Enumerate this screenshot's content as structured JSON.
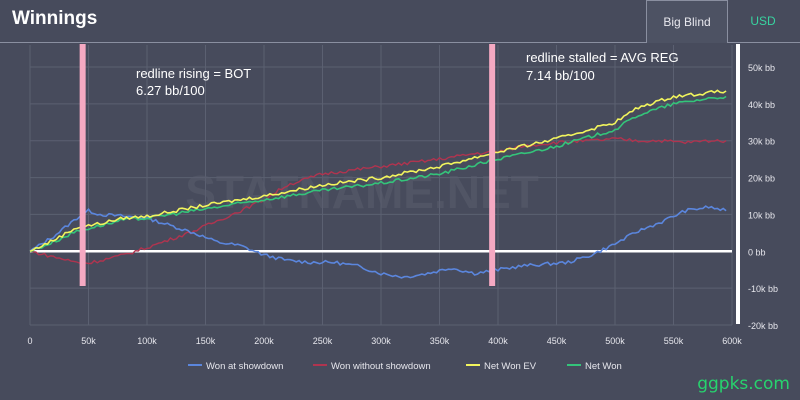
{
  "header": {
    "title": "Winnings",
    "tabs": [
      {
        "label": "Big Blind",
        "active": true
      },
      {
        "label": "USD",
        "active": false
      }
    ]
  },
  "annotations": {
    "left_line1": "redline rising = BOT",
    "left_line2": "6.27 bb/100",
    "right_line1": "redline stalled = AVG REG",
    "right_line2": "7.14 bb/100"
  },
  "watermark": "STATNAME.NET",
  "site_credit": "ggpks.com",
  "colors": {
    "background": "#474b5c",
    "showdown": "#5b86dd",
    "non_showdown": "#b0344f",
    "net_won_ev": "#f2f55d",
    "net_won": "#34c47a",
    "marker": "#f5a9c2",
    "zero_line": "#ffffff"
  },
  "chart_data": {
    "type": "line",
    "x_ticks": [
      "0",
      "50k",
      "100k",
      "150k",
      "200k",
      "250k",
      "300k",
      "350k",
      "400k",
      "450k",
      "500k",
      "550k",
      "600k"
    ],
    "y_ticks": [
      "50k bb",
      "40k bb",
      "30k bb",
      "20k bb",
      "10k bb",
      "0 bb",
      "-10k bb",
      "-20k bb"
    ],
    "xlim": [
      0,
      600000
    ],
    "ylim": [
      -20000,
      50000
    ],
    "grid": true,
    "legend_position": "bottom",
    "markers_x": [
      45000,
      395000
    ],
    "series": [
      {
        "name": "Won at showdown",
        "color": "#5b86dd",
        "x": [
          0,
          20000,
          40000,
          50000,
          60000,
          80000,
          100000,
          120000,
          140000,
          160000,
          180000,
          200000,
          220000,
          240000,
          260000,
          280000,
          300000,
          320000,
          340000,
          360000,
          380000,
          400000,
          420000,
          440000,
          460000,
          480000,
          500000,
          520000,
          540000,
          560000,
          580000,
          595000
        ],
        "y": [
          0,
          4000,
          9000,
          11000,
          10000,
          9500,
          9000,
          7000,
          5000,
          2500,
          1500,
          -1000,
          -2500,
          -3000,
          -3000,
          -4000,
          -6000,
          -7000,
          -6000,
          -4500,
          -6000,
          -5000,
          -4000,
          -3500,
          -3000,
          -1000,
          2000,
          5500,
          8000,
          11000,
          12000,
          11000
        ]
      },
      {
        "name": "Won without showdown",
        "color": "#b0344f",
        "x": [
          0,
          20000,
          40000,
          50000,
          60000,
          80000,
          100000,
          140000,
          180000,
          200000,
          220000,
          250000,
          300000,
          350000,
          380000,
          400000,
          420000,
          450000,
          480000,
          500000,
          520000,
          540000,
          560000,
          580000,
          595000
        ],
        "y": [
          0,
          -1500,
          -3000,
          -3200,
          -2500,
          -1000,
          1000,
          5500,
          11000,
          14000,
          18000,
          21000,
          23000,
          25000,
          26500,
          27000,
          28500,
          29500,
          30000,
          30500,
          30000,
          30000,
          29500,
          30000,
          30000
        ]
      },
      {
        "name": "Net Won EV",
        "color": "#f2f55d",
        "x": [
          0,
          20000,
          40000,
          60000,
          80000,
          100000,
          150000,
          200000,
          250000,
          300000,
          350000,
          400000,
          450000,
          500000,
          520000,
          550000,
          580000,
          595000
        ],
        "y": [
          0,
          3000,
          6500,
          7500,
          9000,
          9500,
          12500,
          15000,
          18000,
          20000,
          23000,
          27000,
          30500,
          35000,
          39000,
          42000,
          43000,
          43500
        ]
      },
      {
        "name": "Net Won",
        "color": "#34c47a",
        "x": [
          0,
          20000,
          40000,
          60000,
          80000,
          100000,
          150000,
          200000,
          250000,
          300000,
          350000,
          400000,
          450000,
          500000,
          520000,
          550000,
          580000,
          595000
        ],
        "y": [
          0,
          2500,
          5500,
          7000,
          8500,
          9000,
          11500,
          14000,
          16500,
          18500,
          21000,
          25000,
          28500,
          33000,
          37000,
          40000,
          41500,
          42000
        ]
      }
    ]
  }
}
